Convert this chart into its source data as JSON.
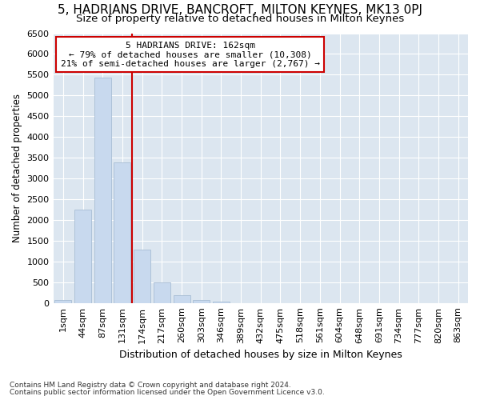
{
  "title1": "5, HADRIANS DRIVE, BANCROFT, MILTON KEYNES, MK13 0PJ",
  "title2": "Size of property relative to detached houses in Milton Keynes",
  "xlabel": "Distribution of detached houses by size in Milton Keynes",
  "ylabel": "Number of detached properties",
  "footnote1": "Contains HM Land Registry data © Crown copyright and database right 2024.",
  "footnote2": "Contains public sector information licensed under the Open Government Licence v3.0.",
  "bar_labels": [
    "1sqm",
    "44sqm",
    "87sqm",
    "131sqm",
    "174sqm",
    "217sqm",
    "260sqm",
    "303sqm",
    "346sqm",
    "389sqm",
    "432sqm",
    "475sqm",
    "518sqm",
    "561sqm",
    "604sqm",
    "648sqm",
    "691sqm",
    "734sqm",
    "777sqm",
    "820sqm",
    "863sqm"
  ],
  "bar_values": [
    70,
    2250,
    5430,
    3380,
    1290,
    490,
    185,
    75,
    30,
    0,
    0,
    0,
    0,
    0,
    0,
    0,
    0,
    0,
    0,
    0,
    0
  ],
  "bar_color": "#c8d9ee",
  "bar_edge_color": "#a8bdd4",
  "figure_bg": "#ffffff",
  "axes_bg": "#dce6f0",
  "grid_color": "#ffffff",
  "annotation_box_text": "5 HADRIANS DRIVE: 162sqm\n← 79% of detached houses are smaller (10,308)\n21% of semi-detached houses are larger (2,767) →",
  "vline_x": 3.5,
  "vline_color": "#cc0000",
  "annotation_box_facecolor": "#ffffff",
  "annotation_box_edgecolor": "#cc0000",
  "ylim": [
    0,
    6500
  ],
  "yticks": [
    0,
    500,
    1000,
    1500,
    2000,
    2500,
    3000,
    3500,
    4000,
    4500,
    5000,
    5500,
    6000,
    6500
  ],
  "title1_fontsize": 11,
  "title2_fontsize": 9.5,
  "xlabel_fontsize": 9,
  "ylabel_fontsize": 8.5,
  "tick_fontsize": 8,
  "annotation_fontsize": 8,
  "footnote_fontsize": 6.5
}
